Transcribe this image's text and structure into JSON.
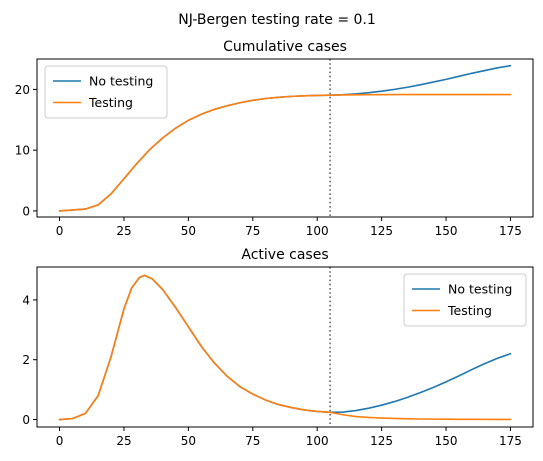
{
  "suptitle": "NJ-Bergen testing rate = 0.1",
  "colors": {
    "no_testing": "#1f77b4",
    "testing": "#ff7f0e",
    "vline": "#666666"
  },
  "chart_data": [
    {
      "type": "line",
      "title": "Cumulative cases",
      "xlabel": "",
      "ylabel": "",
      "xlim": [
        -8.75,
        183.75
      ],
      "ylim": [
        -1.0,
        25.0
      ],
      "xticks": [
        0,
        25,
        50,
        75,
        100,
        125,
        150,
        175
      ],
      "yticks": [
        0,
        10,
        20
      ],
      "grid": false,
      "legend": "upper-left",
      "vline_x": 105,
      "series": [
        {
          "name": "No testing",
          "color_key": "no_testing",
          "x": [
            0,
            10,
            15,
            20,
            25,
            30,
            35,
            40,
            45,
            50,
            55,
            60,
            65,
            70,
            75,
            80,
            85,
            90,
            95,
            100,
            105,
            110,
            115,
            120,
            125,
            130,
            135,
            140,
            145,
            150,
            155,
            160,
            165,
            170,
            175
          ],
          "values": [
            0.0,
            0.3,
            1.0,
            2.8,
            5.3,
            7.8,
            10.1,
            12.0,
            13.6,
            14.9,
            15.9,
            16.7,
            17.3,
            17.8,
            18.2,
            18.5,
            18.7,
            18.85,
            18.95,
            19.0,
            19.05,
            19.12,
            19.25,
            19.45,
            19.7,
            20.0,
            20.35,
            20.75,
            21.2,
            21.65,
            22.15,
            22.65,
            23.1,
            23.55,
            23.9
          ]
        },
        {
          "name": "Testing",
          "color_key": "testing",
          "x": [
            0,
            10,
            15,
            20,
            25,
            30,
            35,
            40,
            45,
            50,
            55,
            60,
            65,
            70,
            75,
            80,
            85,
            90,
            95,
            100,
            105,
            110,
            115,
            120,
            125,
            130,
            135,
            140,
            145,
            150,
            155,
            160,
            165,
            170,
            175
          ],
          "values": [
            0.0,
            0.3,
            1.0,
            2.8,
            5.3,
            7.8,
            10.1,
            12.0,
            13.6,
            14.9,
            15.9,
            16.7,
            17.3,
            17.8,
            18.2,
            18.5,
            18.7,
            18.85,
            18.95,
            19.0,
            19.05,
            19.08,
            19.1,
            19.12,
            19.13,
            19.14,
            19.14,
            19.15,
            19.15,
            19.15,
            19.15,
            19.15,
            19.15,
            19.15,
            19.15
          ]
        }
      ]
    },
    {
      "type": "line",
      "title": "Active cases",
      "xlabel": "",
      "ylabel": "",
      "xlim": [
        -8.75,
        183.75
      ],
      "ylim": [
        -0.25,
        5.1
      ],
      "xticks": [
        0,
        25,
        50,
        75,
        100,
        125,
        150,
        175
      ],
      "yticks": [
        0,
        2,
        4
      ],
      "grid": false,
      "legend": "upper-right",
      "vline_x": 105,
      "series": [
        {
          "name": "No testing",
          "color_key": "no_testing",
          "x": [
            0,
            5,
            10,
            15,
            20,
            25,
            28,
            31,
            33,
            36,
            40,
            45,
            50,
            55,
            60,
            65,
            70,
            75,
            80,
            85,
            90,
            95,
            100,
            105,
            110,
            115,
            120,
            125,
            130,
            135,
            140,
            145,
            150,
            155,
            160,
            165,
            170,
            175
          ],
          "values": [
            0.0,
            0.03,
            0.2,
            0.8,
            2.1,
            3.7,
            4.4,
            4.75,
            4.82,
            4.7,
            4.35,
            3.75,
            3.1,
            2.45,
            1.9,
            1.45,
            1.1,
            0.85,
            0.65,
            0.5,
            0.4,
            0.32,
            0.27,
            0.24,
            0.25,
            0.3,
            0.38,
            0.48,
            0.6,
            0.74,
            0.9,
            1.07,
            1.26,
            1.46,
            1.67,
            1.87,
            2.05,
            2.2
          ]
        },
        {
          "name": "Testing",
          "color_key": "testing",
          "x": [
            0,
            5,
            10,
            15,
            20,
            25,
            28,
            31,
            33,
            36,
            40,
            45,
            50,
            55,
            60,
            65,
            70,
            75,
            80,
            85,
            90,
            95,
            100,
            105,
            110,
            115,
            120,
            125,
            130,
            135,
            140,
            145,
            150,
            155,
            160,
            165,
            170,
            175
          ],
          "values": [
            0.0,
            0.03,
            0.2,
            0.8,
            2.1,
            3.7,
            4.4,
            4.75,
            4.82,
            4.7,
            4.35,
            3.75,
            3.1,
            2.45,
            1.9,
            1.45,
            1.1,
            0.85,
            0.65,
            0.5,
            0.4,
            0.32,
            0.27,
            0.24,
            0.16,
            0.1,
            0.07,
            0.05,
            0.035,
            0.025,
            0.018,
            0.013,
            0.01,
            0.008,
            0.006,
            0.005,
            0.004,
            0.003
          ]
        }
      ]
    }
  ]
}
